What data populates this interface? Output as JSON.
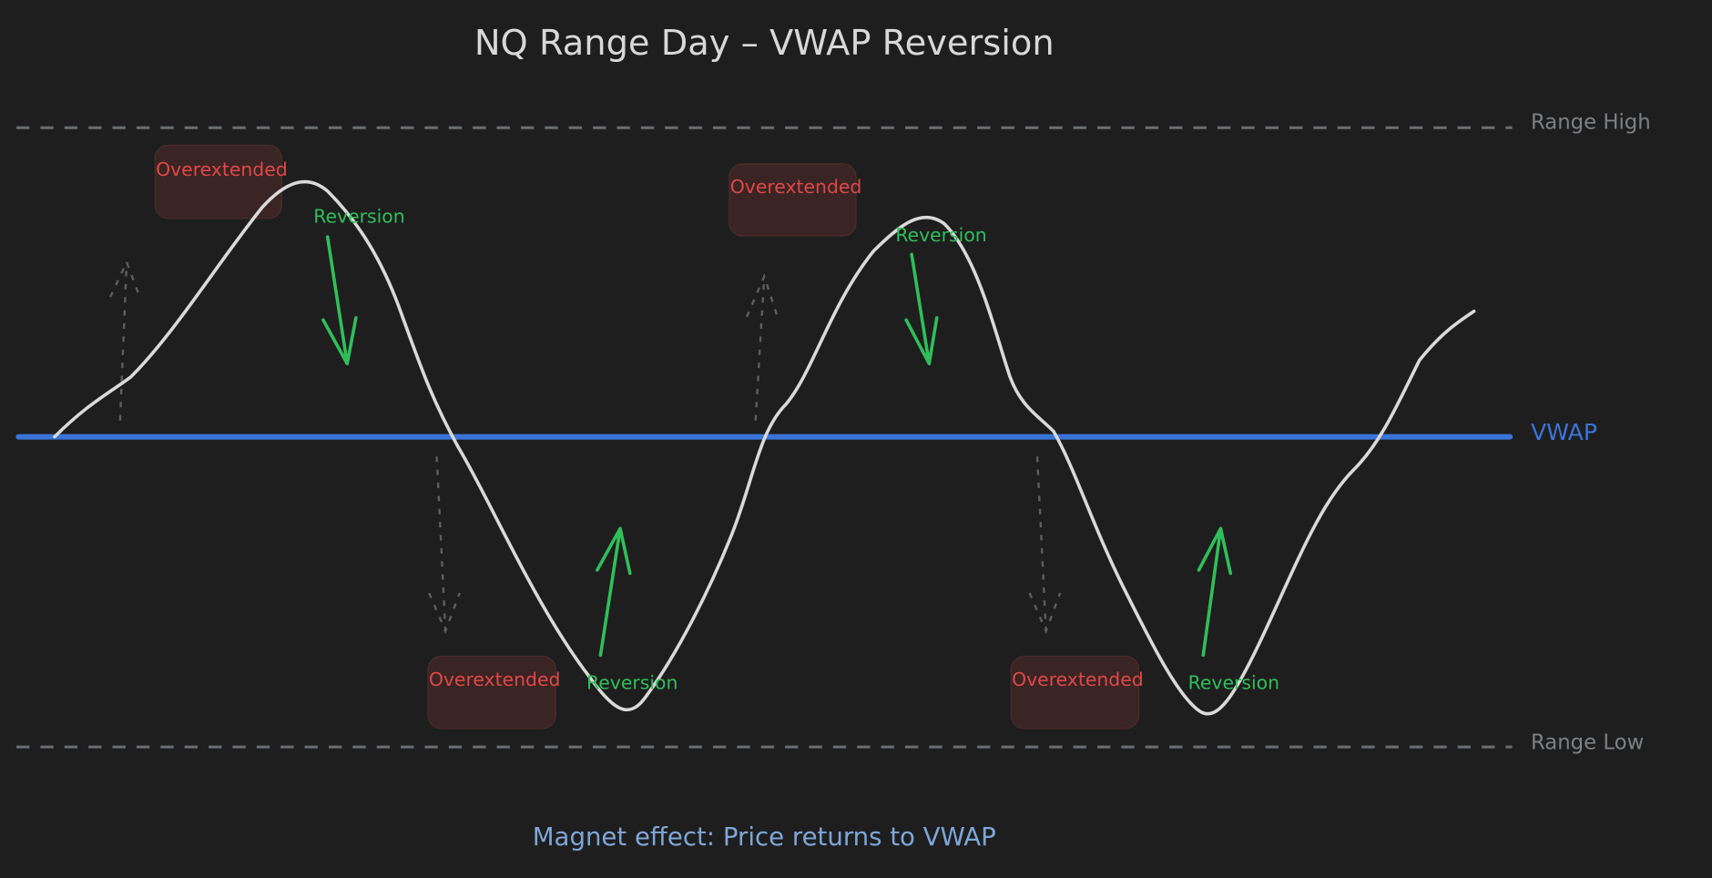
{
  "title": "NQ Range Day – VWAP Reversion",
  "levels": {
    "range_high": "Range High",
    "vwap": "VWAP",
    "range_low": "Range Low"
  },
  "annotations": {
    "overextended": [
      "Overextended",
      "Overextended",
      "Overextended",
      "Overextended"
    ],
    "reversion": [
      "Reversion",
      "Reversion",
      "Reversion",
      "Reversion"
    ]
  },
  "footer": "Magnet effect: Price returns to VWAP",
  "colors": {
    "background": "#1e1e1e",
    "title": "#d8d8d8",
    "vwap": "#3b74d9",
    "price": "#d9d9d9",
    "range_lines": "#6a6d72",
    "overextended_text": "#e04848",
    "overextended_box": "#3a2424",
    "reversion": "#2fbf5a",
    "footer": "#7ea6d8"
  }
}
